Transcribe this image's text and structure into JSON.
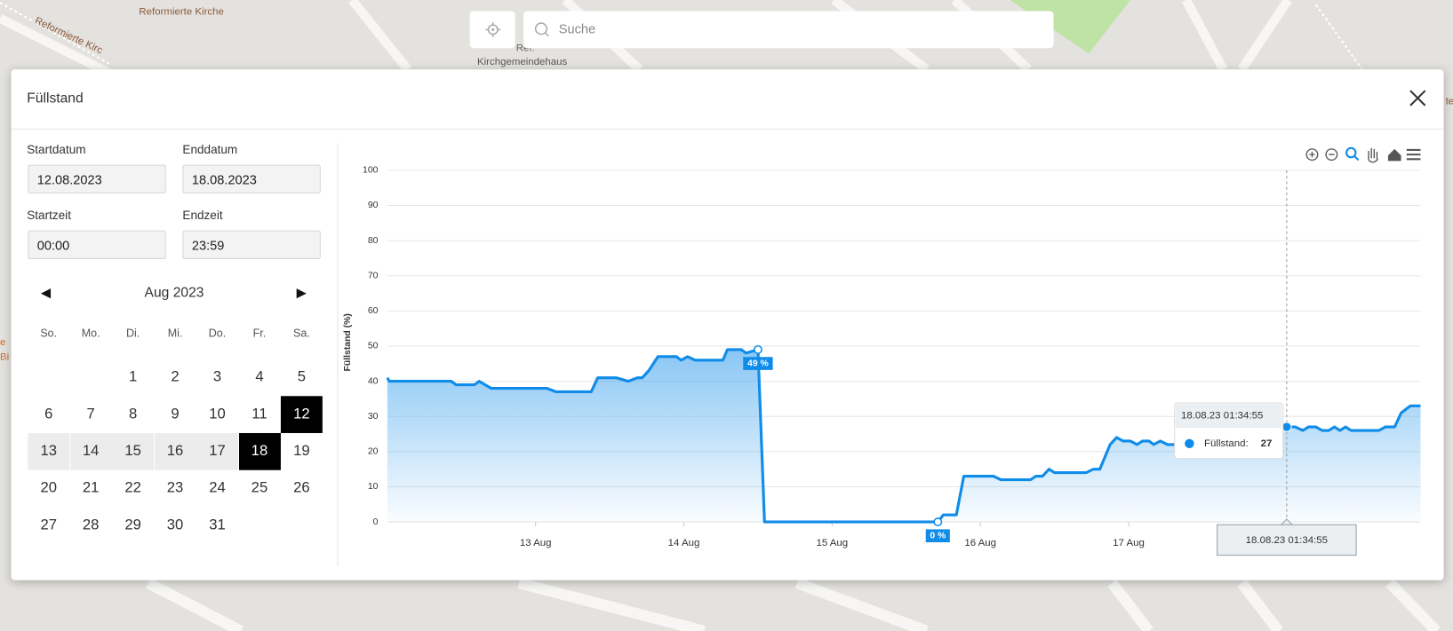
{
  "map": {
    "labels": [
      "Reformierte Kirche",
      "Reformierte Kirc",
      "Ref.",
      "Kirchgemeindehaus",
      "e",
      "Bi",
      "te"
    ]
  },
  "search": {
    "placeholder": "Suche"
  },
  "modal": {
    "title": "Füllstand"
  },
  "form": {
    "start_date_label": "Startdatum",
    "start_date": "12.08.2023",
    "end_date_label": "Enddatum",
    "end_date": "18.08.2023",
    "start_time_label": "Startzeit",
    "start_time": "00:00",
    "end_time_label": "Endzeit",
    "end_time": "23:59"
  },
  "calendar": {
    "month": "Aug 2023",
    "weekdays": [
      "So.",
      "Mo.",
      "Di.",
      "Mi.",
      "Do.",
      "Fr.",
      "Sa."
    ],
    "weeks": [
      [
        null,
        null,
        1,
        2,
        3,
        4,
        5
      ],
      [
        6,
        7,
        8,
        9,
        10,
        11,
        12
      ],
      [
        13,
        14,
        15,
        16,
        17,
        18,
        19
      ],
      [
        20,
        21,
        22,
        23,
        24,
        25,
        26
      ],
      [
        27,
        28,
        29,
        30,
        31
      ]
    ]
  },
  "chart_data": {
    "type": "area",
    "y_label": "Füllstand (%)",
    "color": "#0f8ce9",
    "x": [
      12.0,
      12.013,
      12.431,
      12.463,
      12.588,
      12.619,
      12.7,
      13.075,
      13.138,
      13.375,
      13.419,
      13.544,
      13.625,
      13.688,
      13.719,
      13.763,
      13.825,
      13.95,
      13.981,
      14.025,
      14.075,
      14.263,
      14.294,
      14.388,
      14.419,
      14.5,
      14.544,
      15.713,
      15.75,
      15.838,
      15.888,
      16.088,
      16.138,
      16.338,
      16.375,
      16.419,
      16.463,
      16.5,
      16.713,
      16.763,
      16.806,
      16.875,
      16.919,
      16.963,
      17.013,
      17.056,
      17.094,
      17.138,
      17.169,
      17.213,
      17.263,
      17.325,
      18.066,
      18.125,
      18.175,
      18.213,
      18.263,
      18.306,
      18.35,
      18.388,
      18.425,
      18.463,
      18.5,
      18.688,
      18.731,
      18.794,
      18.838,
      18.9,
      18.969
    ],
    "values": [
      41,
      40,
      40,
      39,
      39,
      40,
      38,
      38,
      37,
      37,
      41,
      41,
      40,
      41,
      41,
      43,
      47,
      47,
      46,
      47,
      46,
      46,
      49,
      49,
      48,
      49,
      0,
      0,
      2,
      2,
      13,
      13,
      12,
      12,
      13,
      13,
      15,
      14,
      14,
      15,
      15,
      22,
      24,
      23,
      23,
      22,
      23,
      23,
      22,
      23,
      22,
      22,
      27,
      27,
      26,
      27,
      27,
      26,
      26,
      27,
      26,
      27,
      26,
      26,
      27,
      27,
      31,
      33,
      33
    ],
    "value_labels": [
      null,
      null,
      null,
      null,
      null,
      null,
      null,
      null,
      null,
      null,
      null,
      null,
      null,
      null,
      null,
      null,
      null,
      null,
      null,
      null,
      null,
      null,
      null,
      null,
      null,
      "49 %",
      null,
      "0 %",
      null,
      null,
      null,
      null,
      null,
      null,
      null,
      null,
      null,
      null,
      null,
      null,
      null,
      null,
      null,
      null,
      null,
      null,
      null,
      null,
      null,
      null,
      null,
      null,
      null,
      null,
      null,
      null,
      null,
      null,
      null,
      null,
      null,
      null,
      null,
      null,
      null,
      null,
      null,
      null,
      null
    ],
    "xlim": [
      12,
      19
    ],
    "xticks": [
      {
        "value": 13,
        "label": "13 Aug"
      },
      {
        "value": 14,
        "label": "14 Aug"
      },
      {
        "value": 15,
        "label": "15 Aug"
      },
      {
        "value": 16,
        "label": "16 Aug"
      },
      {
        "value": 17,
        "label": "17 Aug"
      }
    ],
    "ylim": [
      0,
      100
    ],
    "yticks": [
      0,
      10,
      20,
      30,
      40,
      50,
      60,
      70,
      80,
      90,
      100
    ],
    "grid": true,
    "tooltip": {
      "index": 52,
      "title": "18.08.23 01:34:55",
      "label": "Füllstand:"
    }
  }
}
